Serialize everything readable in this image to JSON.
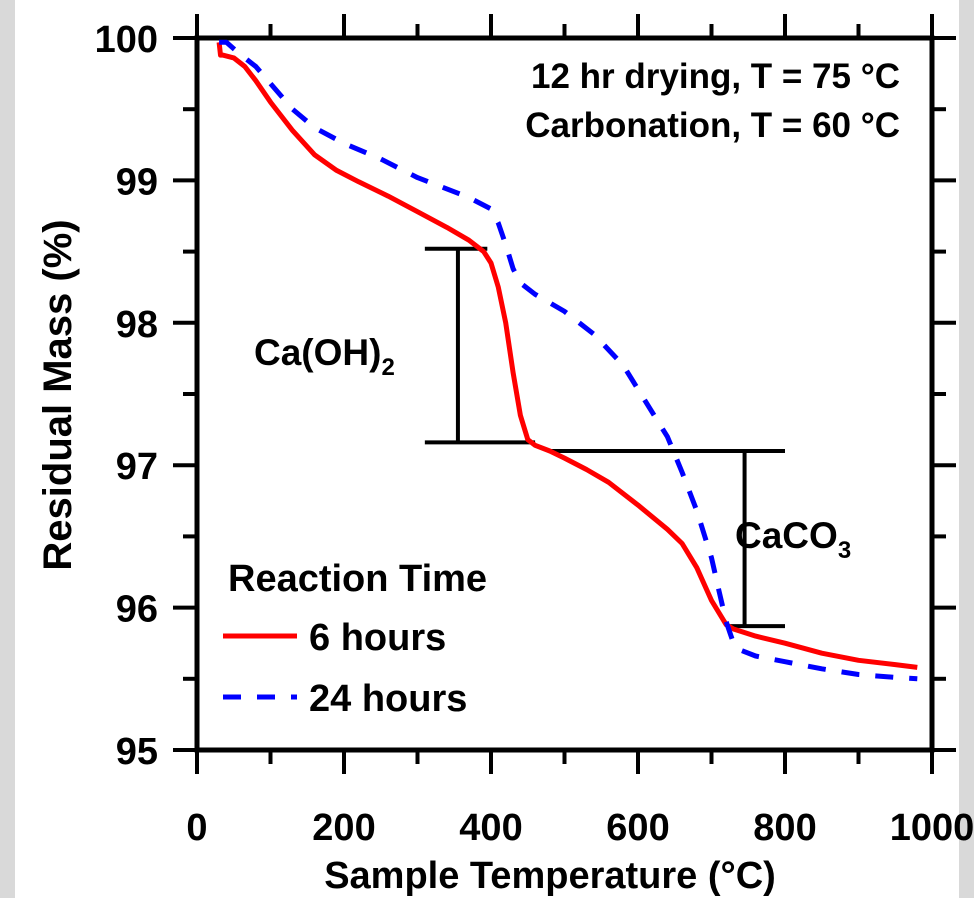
{
  "chart_data": {
    "type": "line",
    "title": "",
    "xlabel": "Sample Temperature (°C)",
    "ylabel": "Residual Mass (%)",
    "xlim": [
      0,
      1000
    ],
    "ylim": [
      95,
      100
    ],
    "x_ticks": [
      "0",
      "200",
      "400",
      "600",
      "800",
      "1000"
    ],
    "y_ticks": [
      "95",
      "96",
      "97",
      "98",
      "99",
      "100"
    ],
    "grid": false,
    "legend": {
      "title": "Reaction Time",
      "position": "bottom-left"
    },
    "annotations": {
      "conditions_line1": "12 hr drying, T = 75 °C",
      "conditions_line2": "Carbonation, T = 60 °C",
      "caoh2": {
        "base": "Ca(OH)",
        "sub": "2",
        "x_range": [
          310,
          460
        ],
        "y_top": 98.52,
        "y_bottom": 97.16,
        "bar_x": 355
      },
      "caco3": {
        "base": "CaCO",
        "sub": "3",
        "x_range": [
          480,
          800
        ],
        "y_top": 97.1,
        "y_bottom": 95.87,
        "bar_x": 745
      }
    },
    "series": [
      {
        "name": "6 hours",
        "color": "#ff0000",
        "style": "solid",
        "x": [
          30,
          32,
          35,
          50,
          65,
          80,
          100,
          130,
          160,
          190,
          220,
          260,
          300,
          340,
          370,
          390,
          400,
          410,
          420,
          430,
          440,
          450,
          460,
          480,
          500,
          530,
          560,
          600,
          640,
          660,
          680,
          700,
          720,
          730,
          760,
          800,
          850,
          900,
          950,
          980
        ],
        "values": [
          99.97,
          99.88,
          99.88,
          99.86,
          99.8,
          99.7,
          99.55,
          99.35,
          99.18,
          99.07,
          98.99,
          98.89,
          98.78,
          98.67,
          98.58,
          98.5,
          98.42,
          98.25,
          98.0,
          97.65,
          97.35,
          97.18,
          97.14,
          97.1,
          97.05,
          96.97,
          96.88,
          96.72,
          96.55,
          96.45,
          96.28,
          96.05,
          95.88,
          95.85,
          95.8,
          95.75,
          95.68,
          95.63,
          95.6,
          95.58
        ]
      },
      {
        "name": "24 hours",
        "color": "#0000ff",
        "style": "dashed",
        "x": [
          30,
          40,
          60,
          80,
          100,
          130,
          160,
          200,
          250,
          300,
          340,
          370,
          400,
          410,
          420,
          430,
          440,
          460,
          500,
          540,
          580,
          610,
          640,
          660,
          680,
          700,
          710,
          720,
          730,
          740,
          760,
          800,
          850,
          900,
          950,
          980
        ],
        "values": [
          99.97,
          99.97,
          99.88,
          99.8,
          99.68,
          99.5,
          99.37,
          99.26,
          99.15,
          99.02,
          98.94,
          98.88,
          98.8,
          98.7,
          98.55,
          98.38,
          98.28,
          98.2,
          98.08,
          97.92,
          97.7,
          97.45,
          97.2,
          96.95,
          96.68,
          96.35,
          96.12,
          95.9,
          95.75,
          95.7,
          95.66,
          95.62,
          95.57,
          95.53,
          95.51,
          95.5
        ]
      }
    ]
  }
}
